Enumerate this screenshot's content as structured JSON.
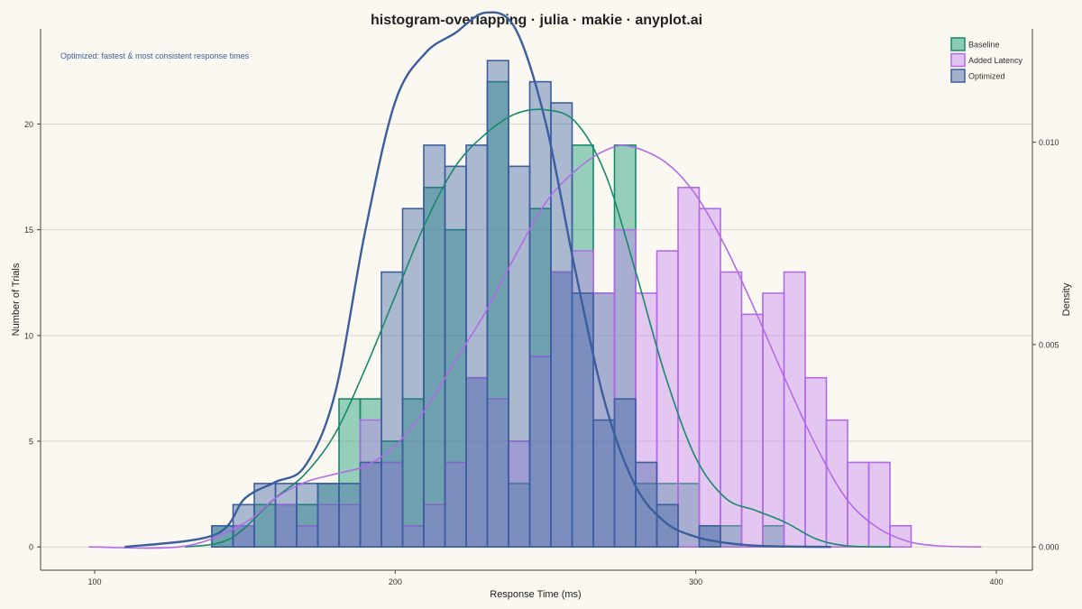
{
  "chart_data": {
    "type": "bar",
    "title": "histogram-overlapping · julia · makie · anyplot.ai",
    "xlabel": "Response Time (ms)",
    "ylabel": "Number of Trials",
    "y2label": "Density",
    "annotation": "Optimized: fastest & most consistent response times",
    "xlim": [
      82,
      412
    ],
    "ylim": [
      -1.1,
      24.5
    ],
    "y2lim": [
      -0.000575,
      0.0128
    ],
    "xticks": [
      100,
      200,
      300,
      400
    ],
    "yticks": [
      0,
      5,
      10,
      15,
      20
    ],
    "y2ticks": [
      0.0,
      0.005,
      0.01
    ],
    "y2ticklabels": [
      "0.000",
      "0.005",
      "0.010"
    ],
    "bin_start": 139,
    "bin_width": 7.05,
    "grid": true,
    "legend_position": "top-right",
    "series": [
      {
        "name": "Baseline",
        "fill": "#1A9E77",
        "fill_opacity": 0.45,
        "stroke": "#17896A",
        "values": [
          1,
          1,
          2,
          2,
          2,
          3,
          7,
          7,
          5,
          7,
          17,
          15,
          8,
          22,
          3,
          16,
          13,
          19,
          12,
          19,
          3,
          3,
          3,
          1,
          1,
          0,
          1,
          0,
          0,
          0,
          0,
          0
        ]
      },
      {
        "name": "Added Latency",
        "fill": "#C47EF2",
        "fill_opacity": 0.4,
        "stroke": "#B36AE8",
        "values": [
          0,
          1,
          0,
          2,
          1,
          2,
          2,
          6,
          4,
          1,
          2,
          4,
          8,
          7,
          5,
          9,
          13,
          14,
          12,
          15,
          12,
          14,
          17,
          16,
          13,
          11,
          12,
          13,
          8,
          6,
          4,
          4,
          1
        ]
      },
      {
        "name": "Optimized",
        "fill": "#3F62A2",
        "fill_opacity": 0.42,
        "stroke": "#3C5E9E",
        "values": [
          1,
          2,
          3,
          3,
          3,
          3,
          3,
          4,
          13,
          16,
          19,
          18,
          19,
          23,
          18,
          22,
          21,
          12,
          6,
          7,
          4,
          2,
          0,
          1
        ]
      }
    ],
    "density_curves": [
      {
        "name": "Baseline",
        "color": "#17896A",
        "x": [
          130,
          145,
          160,
          170,
          180,
          190,
          200,
          210,
          220,
          230,
          240,
          250,
          260,
          270,
          280,
          290,
          300,
          310,
          320,
          330,
          340,
          350,
          365
        ],
        "y": [
          0.0,
          0.0002,
          0.0012,
          0.0018,
          0.0028,
          0.0044,
          0.0062,
          0.008,
          0.0094,
          0.0102,
          0.0107,
          0.0108,
          0.0105,
          0.0092,
          0.0068,
          0.0042,
          0.0022,
          0.0012,
          0.0009,
          0.0006,
          0.0002,
          3e-05,
          0.0
        ]
      },
      {
        "name": "Added Latency",
        "color": "#B36AE8",
        "x": [
          98,
          130,
          150,
          160,
          170,
          180,
          190,
          200,
          210,
          220,
          230,
          240,
          250,
          260,
          270,
          278,
          290,
          300,
          310,
          320,
          330,
          340,
          350,
          360,
          370,
          380,
          395
        ],
        "y": [
          0.0,
          2e-05,
          0.0006,
          0.0012,
          0.0016,
          0.0018,
          0.002,
          0.0025,
          0.0034,
          0.0046,
          0.0058,
          0.0072,
          0.0085,
          0.0093,
          0.0098,
          0.0099,
          0.0095,
          0.0087,
          0.0074,
          0.0058,
          0.0041,
          0.0025,
          0.0012,
          0.0005,
          0.00015,
          3e-05,
          0.0
        ]
      },
      {
        "name": "Optimized",
        "color": "#3C5E9E",
        "x": [
          110,
          140,
          150,
          160,
          170,
          180,
          190,
          200,
          210,
          220,
          230,
          240,
          250,
          260,
          270,
          280,
          290,
          300,
          310,
          320,
          330,
          345
        ],
        "y": [
          0.0,
          0.0003,
          0.0012,
          0.0016,
          0.002,
          0.0038,
          0.0078,
          0.011,
          0.0122,
          0.0127,
          0.0132,
          0.0128,
          0.0105,
          0.0068,
          0.0035,
          0.0015,
          0.0006,
          0.00025,
          0.0001,
          3e-05,
          1e-05,
          0.0
        ]
      }
    ]
  }
}
